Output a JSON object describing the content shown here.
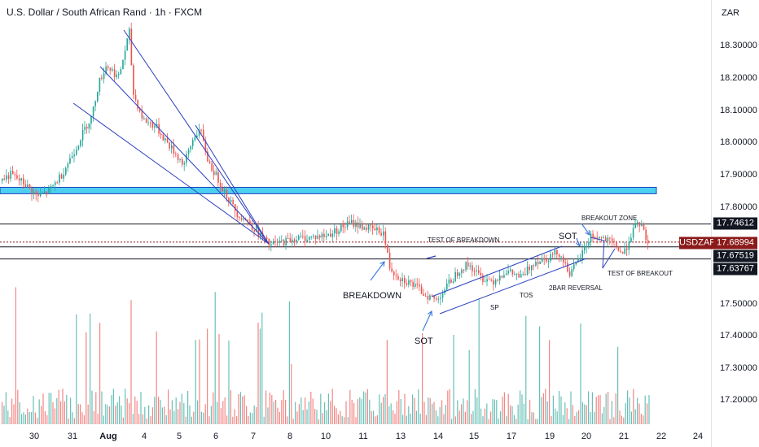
{
  "header": {
    "title": "U.S. Dollar / South African Rand · 1h · FXCM",
    "currency": "ZAR"
  },
  "price_axis": {
    "ticks": [
      "18.30000",
      "18.20000",
      "18.10000",
      "18.00000",
      "17.90000",
      "17.80000",
      "17.50000",
      "17.40000",
      "17.30000",
      "17.20000"
    ],
    "labels": {
      "upper_level": "17.74612",
      "symbol": "USDZAR",
      "last_price": "17.68994",
      "mid_level": "17.67519",
      "lower_level": "17.63767"
    }
  },
  "date_axis": {
    "ticks": [
      "30",
      "31",
      "Aug",
      "4",
      "5",
      "6",
      "7",
      "8",
      "10",
      "11",
      "13",
      "14",
      "15",
      "17",
      "19",
      "20",
      "21",
      "22",
      "24"
    ]
  },
  "annotations": {
    "breakdown": "BREAKDOWN",
    "sot_low": "SOT",
    "sot_high": "SOT",
    "test_of_breakdown": "TEST OF BREAKDOWN",
    "breakout_zone": "BREAKOUT ZONE",
    "test_of_breakout": "TEST OF BREAKOUT",
    "sp": "SP",
    "tos": "TOS",
    "two_bar_reversal": "2BAR REVERSAL"
  },
  "colors": {
    "bull": "#26a69a",
    "bear": "#ef5350",
    "zone_fill": "#4dd0f0",
    "zone_border": "#1e3fbf",
    "trendline": "#2a3fbf",
    "level_line": "#131722",
    "last_price": "#8b1a1a"
  },
  "chart_data": {
    "type": "candlestick",
    "symbol": "USDZAR",
    "timeframe": "1h",
    "y_range": [
      17.12,
      18.39
    ],
    "price_path": [
      [
        0,
        17.88
      ],
      [
        12,
        17.9
      ],
      [
        30,
        17.87
      ],
      [
        45,
        17.83
      ],
      [
        60,
        17.85
      ],
      [
        75,
        17.9
      ],
      [
        92,
        17.98
      ],
      [
        105,
        18.05
      ],
      [
        112,
        18.08
      ],
      [
        120,
        18.18
      ],
      [
        130,
        18.24
      ],
      [
        145,
        18.2
      ],
      [
        155,
        18.31
      ],
      [
        158,
        18.34
      ],
      [
        163,
        18.15
      ],
      [
        175,
        18.07
      ],
      [
        190,
        18.05
      ],
      [
        210,
        17.98
      ],
      [
        225,
        17.93
      ],
      [
        238,
        18.02
      ],
      [
        245,
        18.04
      ],
      [
        255,
        17.94
      ],
      [
        270,
        17.87
      ],
      [
        290,
        17.78
      ],
      [
        305,
        17.75
      ],
      [
        330,
        17.68
      ],
      [
        360,
        17.7
      ],
      [
        400,
        17.71
      ],
      [
        430,
        17.75
      ],
      [
        455,
        17.73
      ],
      [
        470,
        17.72
      ],
      [
        478,
        17.61
      ],
      [
        490,
        17.58
      ],
      [
        505,
        17.56
      ],
      [
        520,
        17.53
      ],
      [
        535,
        17.51
      ],
      [
        550,
        17.56
      ],
      [
        565,
        17.61
      ],
      [
        575,
        17.62
      ],
      [
        590,
        17.58
      ],
      [
        605,
        17.57
      ],
      [
        620,
        17.6
      ],
      [
        640,
        17.58
      ],
      [
        655,
        17.63
      ],
      [
        670,
        17.64
      ],
      [
        685,
        17.66
      ],
      [
        700,
        17.59
      ],
      [
        715,
        17.66
      ],
      [
        725,
        17.71
      ],
      [
        740,
        17.7
      ],
      [
        755,
        17.68
      ],
      [
        765,
        17.65
      ],
      [
        775,
        17.72
      ],
      [
        785,
        17.75
      ],
      [
        795,
        17.69
      ]
    ],
    "levels": [
      17.74612,
      17.67519,
      17.63767
    ],
    "last_price": 17.68994,
    "resistance_zone": [
      17.84,
      17.86
    ]
  }
}
